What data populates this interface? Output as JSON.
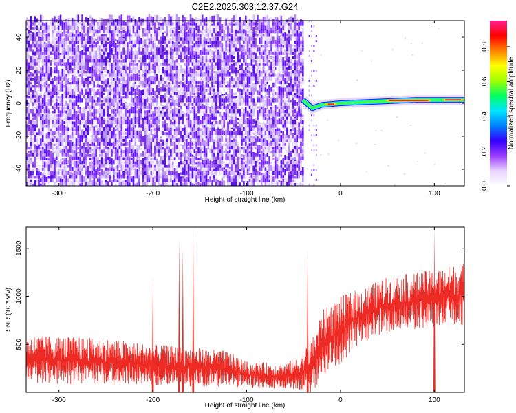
{
  "title": "C2E2.2025.303.12.37.G24",
  "colors": {
    "snr_trace": "#ee2a24",
    "spectrogram_noise": "#7a2cf0",
    "colorbar_stops": [
      "#ffffff",
      "#e8d4ff",
      "#9b3cff",
      "#3300ff",
      "#0080ff",
      "#00e5ff",
      "#00ff60",
      "#a0ff00",
      "#ffff00",
      "#ff8000",
      "#ff0000",
      "#ff2090"
    ]
  },
  "chart_data": [
    {
      "type": "heatmap",
      "panel": "spectrogram",
      "xlabel": "Height of straight line (km)",
      "ylabel": "Frequency (Hz)",
      "xlim": [
        -335,
        132
      ],
      "ylim": [
        -50,
        50
      ],
      "x_ticks": [
        -300,
        -200,
        -100,
        0,
        100
      ],
      "y_ticks": [
        -40,
        -20,
        0,
        20,
        40
      ],
      "colorbar": {
        "label": "Normalized spectral amplitude",
        "range": [
          0,
          0.95
        ],
        "ticks": [
          0.0,
          0.2,
          0.4,
          0.6,
          0.8
        ]
      },
      "noise_region_km": [
        -335,
        -40
      ],
      "gap_km": [
        -38,
        -34
      ],
      "faint_region_km": [
        -34,
        -25
      ],
      "signal_track": {
        "x_start": -35,
        "x_end": 132,
        "frequency_hz": [
          [
            -40,
            2
          ],
          [
            -30,
            -3
          ],
          [
            -20,
            -1
          ],
          [
            0,
            0
          ],
          [
            40,
            1
          ],
          [
            80,
            2
          ],
          [
            100,
            2
          ],
          [
            132,
            2
          ]
        ],
        "peak_amplitude_regions_km": [
          [
            -15,
            -5
          ],
          [
            50,
            95
          ],
          [
            110,
            130
          ]
        ]
      }
    },
    {
      "type": "line",
      "panel": "snr",
      "xlabel": "Height of straight line (km)",
      "ylabel": "SNR (10 * v/v)",
      "xlim": [
        -335,
        132
      ],
      "ylim": [
        0,
        1720
      ],
      "x_ticks": [
        -300,
        -200,
        -100,
        0,
        100
      ],
      "y_ticks": [
        500,
        1000,
        1500
      ],
      "baseline_envelope": [
        [
          -335,
          90,
          600
        ],
        [
          -250,
          80,
          560
        ],
        [
          -200,
          70,
          500
        ],
        [
          -160,
          60,
          470
        ],
        [
          -120,
          60,
          430
        ],
        [
          -100,
          40,
          320
        ],
        [
          -60,
          40,
          300
        ],
        [
          -45,
          30,
          360
        ],
        [
          -30,
          0,
          560
        ],
        [
          -20,
          150,
          850
        ],
        [
          0,
          300,
          1000
        ],
        [
          20,
          500,
          1080
        ],
        [
          50,
          620,
          1200
        ],
        [
          100,
          680,
          1280
        ],
        [
          132,
          700,
          1350
        ]
      ],
      "spikes": [
        {
          "x": -200,
          "value": 1200
        },
        {
          "x": -172,
          "value": 1600
        },
        {
          "x": -168,
          "value": 1500
        },
        {
          "x": -157,
          "value": 1720
        },
        {
          "x": -35,
          "value": 1490
        },
        {
          "x": 100,
          "value": 1720
        }
      ]
    }
  ]
}
